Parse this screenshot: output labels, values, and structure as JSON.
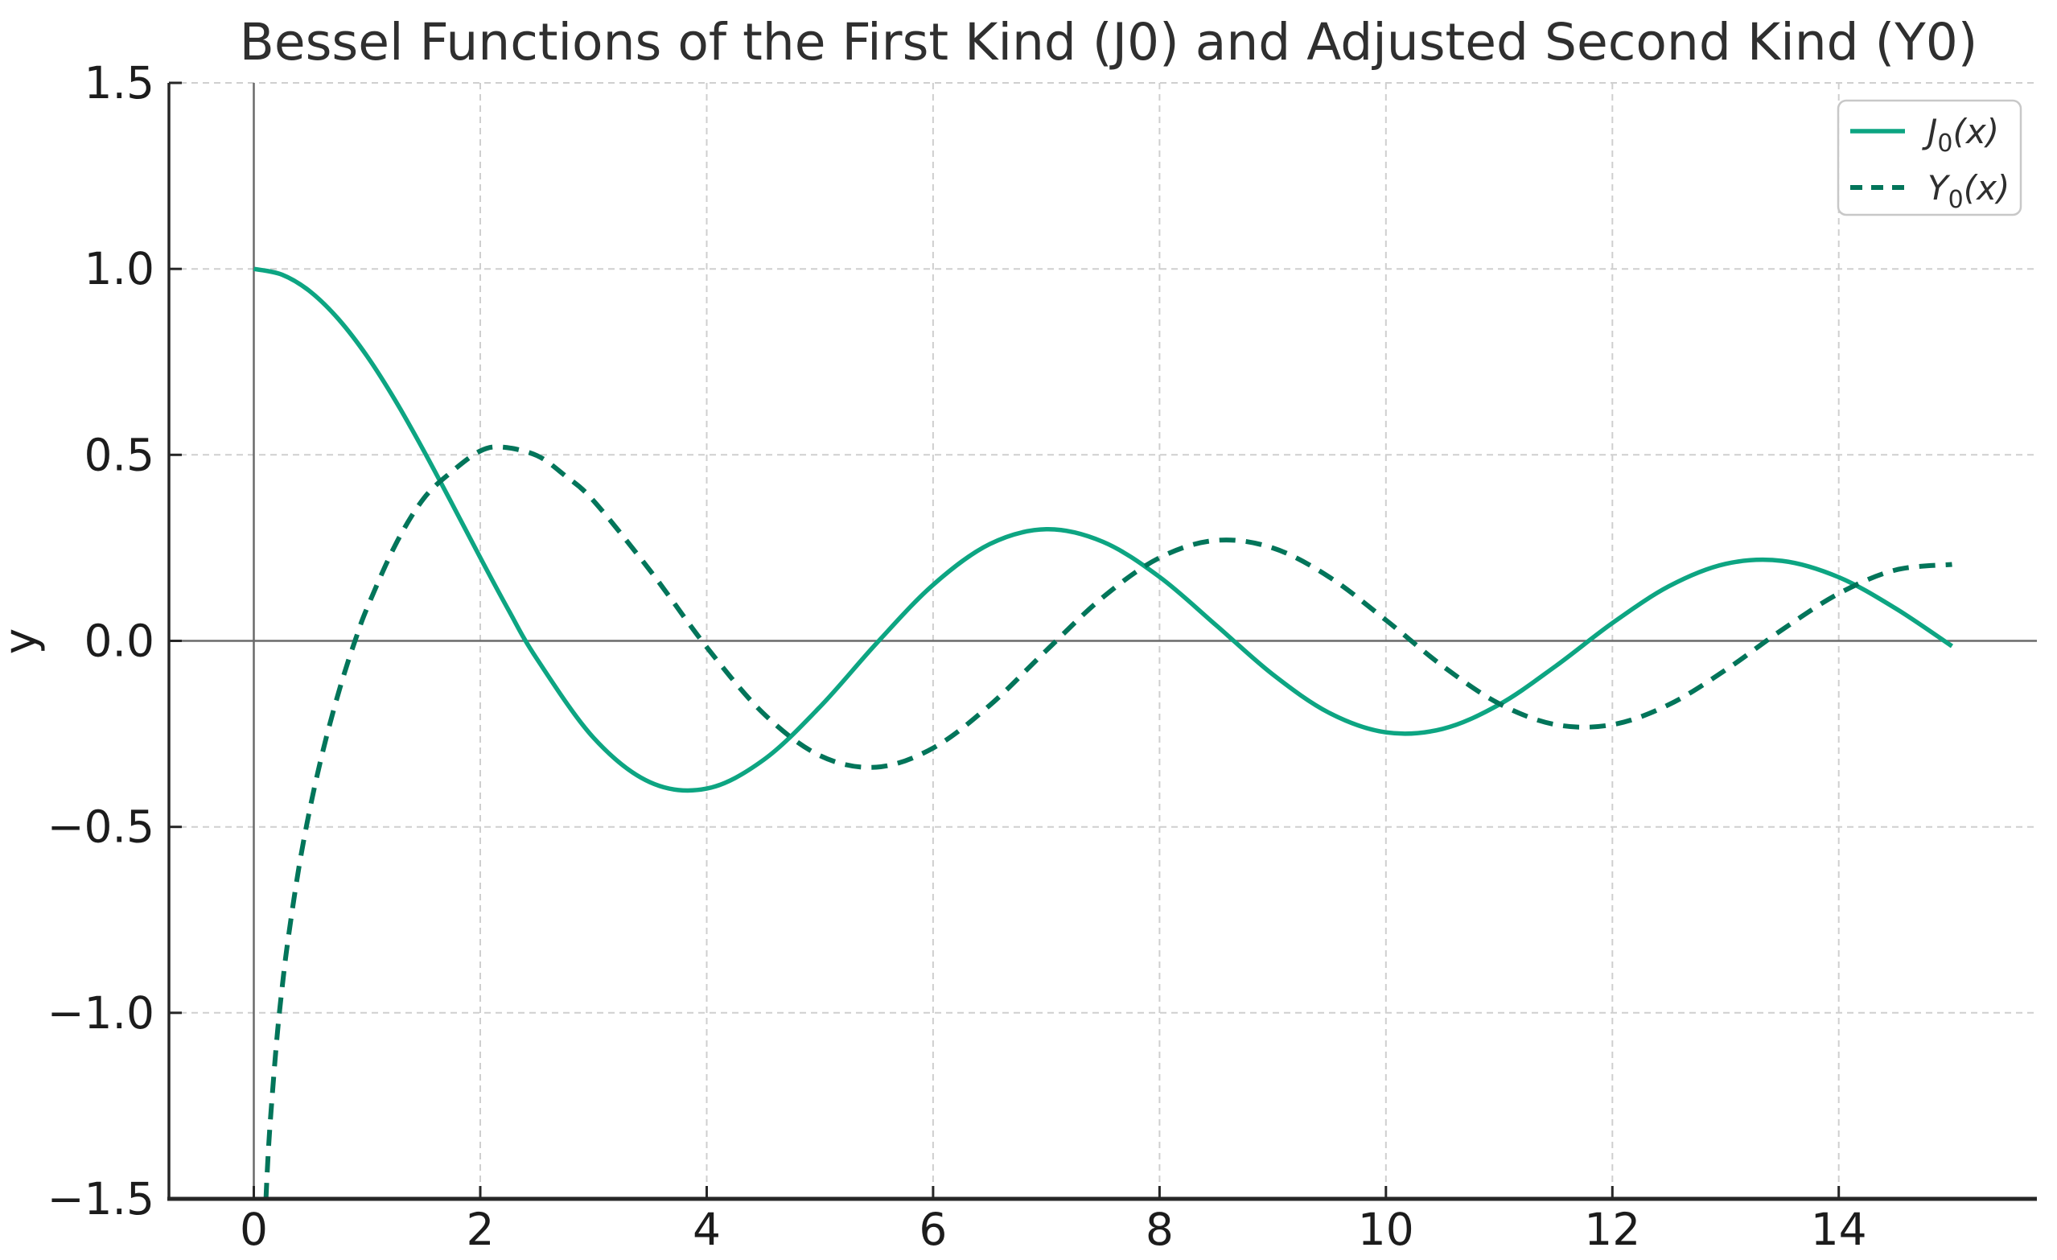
{
  "chart": {
    "title": "Bessel Functions of the First Kind (J0) and Adjusted Second Kind (Y0)",
    "ylabel": "y",
    "xlabel": ""
  },
  "legend": {
    "position": "upper right",
    "items": [
      {
        "label": "J0(x)",
        "sym": "J",
        "sub": "0",
        "rest": "(x)",
        "line_style": "solid"
      },
      {
        "label": "Y0(x)",
        "sym": "Y",
        "sub": "0",
        "rest": "(x)",
        "line_style": "dashed"
      }
    ]
  },
  "axes": {
    "x_tick_labels": [
      "0",
      "2",
      "4",
      "6",
      "8",
      "10",
      "12",
      "14"
    ],
    "y_tick_labels": [
      "−1.5",
      "−1.0",
      "−0.5",
      "0.0",
      "0.5",
      "1.0",
      "1.5"
    ]
  },
  "colors": {
    "j0_line": "#0da582",
    "y0_line": "#02755a",
    "grid": "#cfcfcf",
    "spine": "#262626",
    "reference_line": "#6a6a6a",
    "title_text": "#2f2f2f",
    "tick_text": "#1c1c1c",
    "legend_border": "#c8c8c8",
    "legend_fill": "#ffffff",
    "background": "#ffffff"
  },
  "chart_data": {
    "type": "line",
    "title": "Bessel Functions of the First Kind (J0) and Adjusted Second Kind (Y0)",
    "xlabel": "",
    "ylabel": "y",
    "xlim": [
      -0.75,
      15.75
    ],
    "ylim": [
      -1.5,
      1.5
    ],
    "x_ticks": [
      0,
      2,
      4,
      6,
      8,
      10,
      12,
      14
    ],
    "y_ticks": [
      -1.5,
      -1.0,
      -0.5,
      0.0,
      0.5,
      1.0,
      1.5
    ],
    "grid": true,
    "grid_style": "dashed",
    "legend_position": "upper right",
    "reference_lines": {
      "axhline_y": 0.0,
      "axvline_x": 0.0
    },
    "series": [
      {
        "name": "J0(x)",
        "line_style": "solid",
        "color": "#0da582",
        "x": [
          0,
          0.25,
          0.5,
          0.75,
          1.0,
          1.25,
          1.5,
          1.75,
          2.0,
          2.25,
          2.5,
          3.0,
          3.5,
          4.0,
          4.5,
          5.0,
          5.5,
          6.0,
          6.5,
          7.0,
          7.5,
          8.0,
          8.5,
          9.0,
          9.5,
          10.0,
          10.5,
          11.0,
          11.5,
          12.0,
          12.5,
          13.0,
          13.5,
          14.0,
          14.5,
          15.0
        ],
        "y": [
          1.0,
          0.9844,
          0.9385,
          0.8642,
          0.7652,
          0.6459,
          0.5118,
          0.369,
          0.2239,
          0.0827,
          -0.0484,
          -0.2601,
          -0.3801,
          -0.3971,
          -0.3205,
          -0.1776,
          -0.0068,
          0.1506,
          0.2601,
          0.3001,
          0.2663,
          0.1717,
          0.0419,
          -0.0903,
          -0.1939,
          -0.2459,
          -0.2366,
          -0.1712,
          -0.0677,
          0.0477,
          0.1469,
          0.2069,
          0.215,
          0.1711,
          0.0875,
          -0.0142
        ]
      },
      {
        "name": "Y0(x)",
        "line_style": "dashed",
        "color": "#02755a",
        "clipped_at": -1.5,
        "x": [
          0.107,
          0.125,
          0.15,
          0.2,
          0.25,
          0.3,
          0.4,
          0.5,
          0.6,
          0.7,
          0.8,
          0.9,
          1.0,
          1.25,
          1.5,
          1.75,
          2.0,
          2.2,
          2.5,
          2.75,
          3.0,
          3.5,
          4.0,
          4.5,
          5.0,
          5.5,
          6.0,
          6.5,
          7.0,
          7.5,
          8.0,
          8.5,
          9.0,
          9.5,
          10.0,
          10.5,
          11.0,
          11.5,
          12.0,
          12.5,
          13.0,
          13.5,
          14.0,
          14.5,
          15.0
        ],
        "y": [
          -1.5,
          -1.39,
          -1.271,
          -1.081,
          -0.932,
          -0.807,
          -0.606,
          -0.4445,
          -0.3085,
          -0.1907,
          -0.0868,
          0.0056,
          0.0883,
          0.258,
          0.3824,
          0.455,
          0.5104,
          0.5208,
          0.4981,
          0.444,
          0.3769,
          0.189,
          -0.0169,
          -0.1947,
          -0.3085,
          -0.3395,
          -0.2882,
          -0.1732,
          -0.0259,
          0.1173,
          0.2235,
          0.2702,
          0.2499,
          0.1712,
          0.0557,
          -0.0675,
          -0.1688,
          -0.2252,
          -0.2252,
          -0.1713,
          -0.0782,
          0.0301,
          0.1272,
          0.1903,
          0.2055
        ]
      }
    ]
  }
}
